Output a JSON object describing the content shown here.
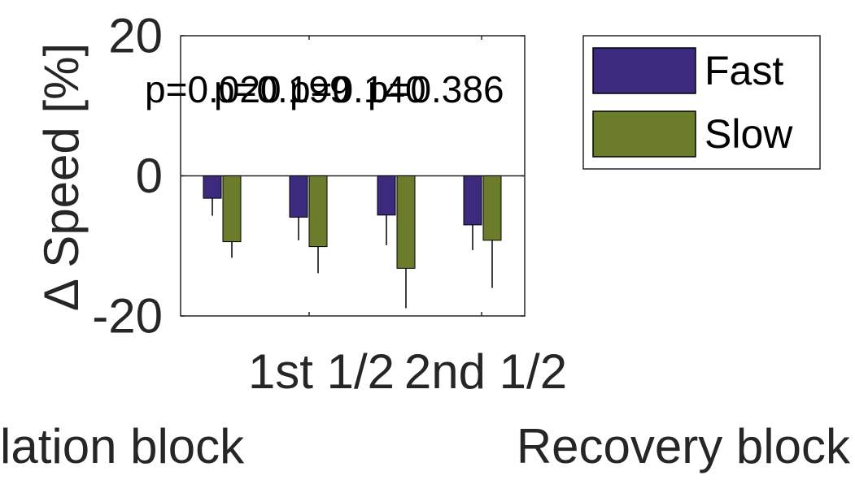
{
  "chart_data": {
    "type": "bar",
    "ylabel": "Δ Speed [%]",
    "ylim": [
      -20,
      20
    ],
    "yticks": [
      -20,
      0,
      20
    ],
    "categories": [
      "",
      "",
      "",
      ""
    ],
    "x_tick_labels": [
      "1st 1/2",
      "2nd 1/2"
    ],
    "group_labels": [
      "Adaptation block",
      "Recovery block"
    ],
    "group_labels_visible": [
      "lation block",
      "Recovery block"
    ],
    "series": [
      {
        "name": "Fast",
        "color": "#3b2a7d",
        "values": [
          -3.2,
          -5.9,
          -5.6,
          -7.0
        ],
        "errors": [
          2.5,
          3.3,
          4.3,
          3.6
        ]
      },
      {
        "name": "Slow",
        "color": "#6b7d2b",
        "values": [
          -9.4,
          -10.1,
          -13.2,
          -9.2
        ],
        "errors": [
          2.3,
          3.8,
          5.7,
          6.8
        ]
      }
    ],
    "annotations": [
      "p=0.020",
      "p=0.199",
      "p=0.140",
      "p=0.386"
    ],
    "legend": {
      "placement": "top-right outside",
      "entries": [
        "Fast",
        "Slow"
      ]
    },
    "grid": false
  }
}
